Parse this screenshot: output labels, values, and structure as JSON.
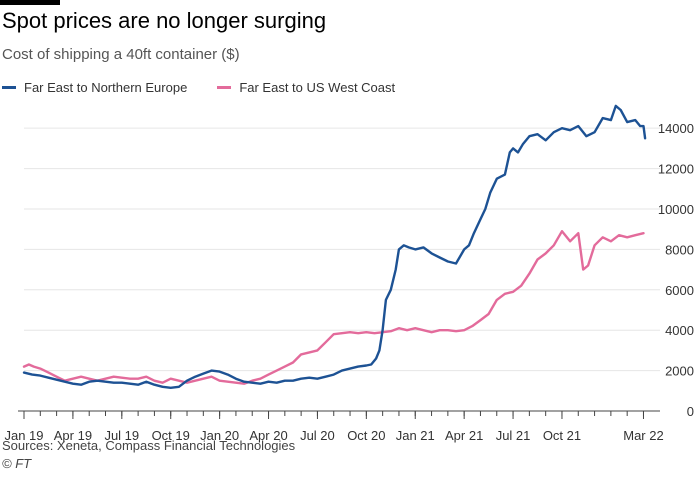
{
  "header": {
    "title": "Spot prices are no longer surging",
    "subtitle": "Cost of shipping a 40ft container ($)"
  },
  "footer": {
    "source": "Sources: Xeneta, Compass Financial Technologies",
    "copyright": "© FT"
  },
  "colors": {
    "series_1": "#1d5294",
    "series_2": "#e36b9b",
    "grid": "#e6e6e6",
    "axis": "#444444",
    "brand_bar": "#000000"
  },
  "chart_data": {
    "type": "line",
    "title": "Spot prices are no longer surging",
    "subtitle": "Cost of shipping a 40ft container ($)",
    "xlabel": "",
    "ylabel": "",
    "x_tick_labels": [
      "Jan 19",
      "Apr 19",
      "Jul 19",
      "Oct 19",
      "Jan 20",
      "Apr 20",
      "Jul 20",
      "Oct 20",
      "Jan 21",
      "Apr 21",
      "Jul 21",
      "Oct 21",
      "Mar 22"
    ],
    "x_tick_months": [
      0,
      3,
      6,
      9,
      12,
      15,
      18,
      21,
      24,
      27,
      30,
      33,
      38
    ],
    "x_range_months": [
      0,
      38.4
    ],
    "y_ticks": [
      0,
      2000,
      4000,
      6000,
      8000,
      10000,
      12000,
      14000
    ],
    "ylim": [
      0,
      14800
    ],
    "y_axis_side": "right",
    "grid": "horizontal",
    "legend_position": "top-left",
    "series": [
      {
        "name": "Far East to Northern Europe",
        "color": "#1d5294",
        "points": [
          [
            0,
            1900
          ],
          [
            0.5,
            1800
          ],
          [
            1,
            1750
          ],
          [
            1.5,
            1650
          ],
          [
            2,
            1550
          ],
          [
            2.5,
            1450
          ],
          [
            3,
            1350
          ],
          [
            3.5,
            1300
          ],
          [
            4,
            1450
          ],
          [
            4.5,
            1500
          ],
          [
            5,
            1450
          ],
          [
            5.5,
            1400
          ],
          [
            6,
            1400
          ],
          [
            6.5,
            1350
          ],
          [
            7,
            1300
          ],
          [
            7.5,
            1450
          ],
          [
            8,
            1300
          ],
          [
            8.5,
            1200
          ],
          [
            9,
            1150
          ],
          [
            9.5,
            1200
          ],
          [
            10,
            1500
          ],
          [
            10.5,
            1700
          ],
          [
            11,
            1850
          ],
          [
            11.5,
            2000
          ],
          [
            12,
            1950
          ],
          [
            12.5,
            1800
          ],
          [
            13,
            1600
          ],
          [
            13.5,
            1450
          ],
          [
            14,
            1400
          ],
          [
            14.5,
            1350
          ],
          [
            15,
            1450
          ],
          [
            15.5,
            1400
          ],
          [
            16,
            1500
          ],
          [
            16.5,
            1500
          ],
          [
            17,
            1600
          ],
          [
            17.5,
            1650
          ],
          [
            18,
            1600
          ],
          [
            18.5,
            1700
          ],
          [
            19,
            1800
          ],
          [
            19.5,
            2000
          ],
          [
            20,
            2100
          ],
          [
            20.5,
            2200
          ],
          [
            21,
            2250
          ],
          [
            21.3,
            2300
          ],
          [
            21.6,
            2600
          ],
          [
            21.8,
            3000
          ],
          [
            22,
            4000
          ],
          [
            22.2,
            5500
          ],
          [
            22.5,
            6000
          ],
          [
            22.8,
            7000
          ],
          [
            23,
            8000
          ],
          [
            23.3,
            8200
          ],
          [
            23.6,
            8100
          ],
          [
            24,
            8000
          ],
          [
            24.5,
            8100
          ],
          [
            25,
            7800
          ],
          [
            25.5,
            7600
          ],
          [
            26,
            7400
          ],
          [
            26.5,
            7300
          ],
          [
            27,
            8000
          ],
          [
            27.3,
            8200
          ],
          [
            27.6,
            8800
          ],
          [
            28,
            9500
          ],
          [
            28.3,
            10000
          ],
          [
            28.6,
            10800
          ],
          [
            29,
            11500
          ],
          [
            29.5,
            11700
          ],
          [
            29.8,
            12800
          ],
          [
            30,
            13000
          ],
          [
            30.3,
            12800
          ],
          [
            30.6,
            13200
          ],
          [
            31,
            13600
          ],
          [
            31.5,
            13700
          ],
          [
            32,
            13400
          ],
          [
            32.5,
            13800
          ],
          [
            33,
            14000
          ],
          [
            33.5,
            13900
          ],
          [
            34,
            14100
          ],
          [
            34.5,
            13600
          ],
          [
            35,
            13800
          ],
          [
            35.5,
            14500
          ],
          [
            36,
            14400
          ],
          [
            36.3,
            15100
          ],
          [
            36.6,
            14900
          ],
          [
            37,
            14300
          ],
          [
            37.5,
            14400
          ],
          [
            37.8,
            14100
          ],
          [
            38,
            14100
          ],
          [
            38.1,
            13500
          ]
        ]
      },
      {
        "name": "Far East to US West Coast",
        "color": "#e36b9b",
        "points": [
          [
            0,
            2200
          ],
          [
            0.3,
            2300
          ],
          [
            0.6,
            2200
          ],
          [
            1,
            2100
          ],
          [
            1.5,
            1900
          ],
          [
            2,
            1700
          ],
          [
            2.5,
            1500
          ],
          [
            3,
            1600
          ],
          [
            3.5,
            1700
          ],
          [
            4,
            1600
          ],
          [
            4.5,
            1500
          ],
          [
            5,
            1600
          ],
          [
            5.5,
            1700
          ],
          [
            6,
            1650
          ],
          [
            6.5,
            1600
          ],
          [
            7,
            1600
          ],
          [
            7.5,
            1700
          ],
          [
            8,
            1500
          ],
          [
            8.5,
            1400
          ],
          [
            9,
            1600
          ],
          [
            9.5,
            1500
          ],
          [
            10,
            1400
          ],
          [
            10.5,
            1500
          ],
          [
            11,
            1600
          ],
          [
            11.5,
            1700
          ],
          [
            12,
            1500
          ],
          [
            12.5,
            1450
          ],
          [
            13,
            1400
          ],
          [
            13.5,
            1350
          ],
          [
            14,
            1500
          ],
          [
            14.5,
            1600
          ],
          [
            15,
            1800
          ],
          [
            15.5,
            2000
          ],
          [
            16,
            2200
          ],
          [
            16.5,
            2400
          ],
          [
            17,
            2800
          ],
          [
            17.5,
            2900
          ],
          [
            18,
            3000
          ],
          [
            18.5,
            3400
          ],
          [
            19,
            3800
          ],
          [
            19.5,
            3850
          ],
          [
            20,
            3900
          ],
          [
            20.5,
            3850
          ],
          [
            21,
            3900
          ],
          [
            21.5,
            3850
          ],
          [
            22,
            3900
          ],
          [
            22.5,
            3950
          ],
          [
            23,
            4100
          ],
          [
            23.5,
            4000
          ],
          [
            24,
            4100
          ],
          [
            24.5,
            4000
          ],
          [
            25,
            3900
          ],
          [
            25.5,
            4000
          ],
          [
            26,
            4000
          ],
          [
            26.5,
            3950
          ],
          [
            27,
            4000
          ],
          [
            27.5,
            4200
          ],
          [
            28,
            4500
          ],
          [
            28.5,
            4800
          ],
          [
            29,
            5500
          ],
          [
            29.5,
            5800
          ],
          [
            30,
            5900
          ],
          [
            30.5,
            6200
          ],
          [
            31,
            6800
          ],
          [
            31.5,
            7500
          ],
          [
            32,
            7800
          ],
          [
            32.5,
            8200
          ],
          [
            33,
            8900
          ],
          [
            33.5,
            8400
          ],
          [
            34,
            8800
          ],
          [
            34.3,
            7000
          ],
          [
            34.6,
            7200
          ],
          [
            35,
            8200
          ],
          [
            35.5,
            8600
          ],
          [
            36,
            8400
          ],
          [
            36.5,
            8700
          ],
          [
            37,
            8600
          ],
          [
            37.5,
            8700
          ],
          [
            38,
            8800
          ]
        ]
      }
    ]
  }
}
